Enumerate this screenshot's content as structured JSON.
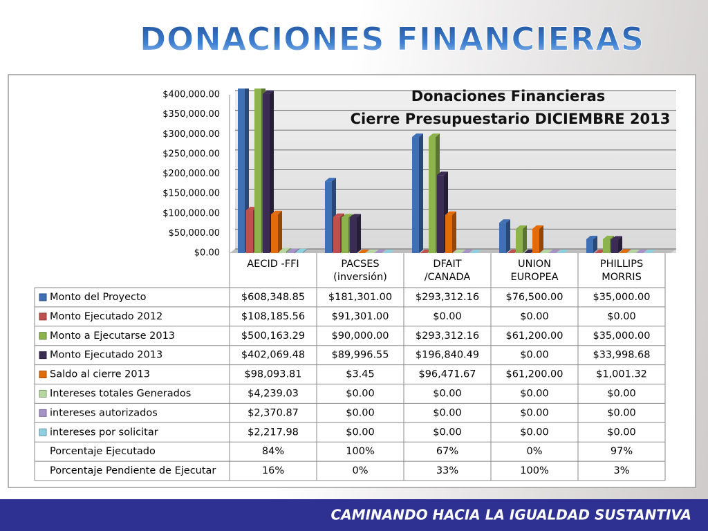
{
  "header": {
    "title": "DONACIONES FINANCIERAS"
  },
  "footer": {
    "text": "CAMINANDO HACIA LA IGUALDAD SUSTANTIVA"
  },
  "chart_data": {
    "type": "bar",
    "title": "Donaciones Financieras",
    "subtitle": "Cierre Presupuestario  DICIEMBRE 2013",
    "categories": [
      "AECID -FFI",
      "PACSES (inversión)",
      "DFAIT /CANADA",
      "UNION EUROPEA",
      "PHILLIPS MORRIS"
    ],
    "ylim": [
      0,
      400000
    ],
    "yticks": [
      {
        "value": 0,
        "label": "$0.00"
      },
      {
        "value": 50000,
        "label": "$50,000.00"
      },
      {
        "value": 100000,
        "label": "$100,000.00"
      },
      {
        "value": 150000,
        "label": "$150,000.00"
      },
      {
        "value": 200000,
        "label": "$200,000.00"
      },
      {
        "value": 250000,
        "label": "$250,000.00"
      },
      {
        "value": 300000,
        "label": "$300,000.00"
      },
      {
        "value": 350000,
        "label": "$350,000.00"
      },
      {
        "value": 400000,
        "label": "$400,000.00"
      }
    ],
    "grid": true,
    "series": [
      {
        "name": "Monto  del Proyecto",
        "color": "#3f6fb5",
        "values": [
          608348.85,
          181301,
          293312.16,
          76500,
          35000
        ],
        "value_labels": [
          "$608,348.85",
          "$181,301.00",
          "$293,312.16",
          "$76,500.00",
          "$35,000.00"
        ]
      },
      {
        "name": "Monto Ejecutado 2012",
        "color": "#c0504d",
        "values": [
          108185.56,
          91301,
          0,
          0,
          0
        ],
        "value_labels": [
          "$108,185.56",
          "$91,301.00",
          "$0.00",
          "$0.00",
          "$0.00"
        ]
      },
      {
        "name": "Monto a Ejecutarse 2013",
        "color": "#8db34c",
        "values": [
          500163.29,
          90000,
          293312.16,
          61200,
          35000
        ],
        "value_labels": [
          "$500,163.29",
          "$90,000.00",
          "$293,312.16",
          "$61,200.00",
          "$35,000.00"
        ]
      },
      {
        "name": "Monto Ejecutado 2013",
        "color": "#3a2c54",
        "values": [
          402069.48,
          89996.55,
          196840.49,
          0,
          33998.68
        ],
        "value_labels": [
          "$402,069.48",
          "$89,996.55",
          "$196,840.49",
          "$0.00",
          "$33,998.68"
        ]
      },
      {
        "name": "Saldo al cierre 2013",
        "color": "#e36c0a",
        "values": [
          98093.81,
          3.45,
          96471.67,
          61200,
          1001.32
        ],
        "value_labels": [
          "$98,093.81",
          "$3.45",
          "$96,471.67",
          "$61,200.00",
          "$1,001.32"
        ]
      },
      {
        "name": "Intereses totales Generados",
        "color": "#b7d7a0",
        "values": [
          4239.03,
          0,
          0,
          0,
          0
        ],
        "value_labels": [
          "$4,239.03",
          "$0.00",
          "$0.00",
          "$0.00",
          "$0.00"
        ]
      },
      {
        "name": "intereses autorizados",
        "color": "#a593c7",
        "values": [
          2370.87,
          0,
          0,
          0,
          0
        ],
        "value_labels": [
          "$2,370.87",
          "$0.00",
          "$0.00",
          "$0.00",
          "$0.00"
        ]
      },
      {
        "name": "intereses por solicitar",
        "color": "#8fd0e0",
        "values": [
          2217.98,
          0,
          0,
          0,
          0
        ],
        "value_labels": [
          "$2,217.98",
          "$0.00",
          "$0.00",
          "$0.00",
          "$0.00"
        ]
      }
    ],
    "percent_rows": [
      {
        "name": "Porcentaje Ejecutado",
        "values": [
          84,
          100,
          67,
          0,
          97
        ],
        "value_labels": [
          "84%",
          "100%",
          "67%",
          "0%",
          "97%"
        ]
      },
      {
        "name": "Porcentaje Pendiente de Ejecutar",
        "values": [
          16,
          0,
          33,
          100,
          3
        ],
        "value_labels": [
          "16%",
          "0%",
          "33%",
          "100%",
          "3%"
        ]
      }
    ]
  }
}
